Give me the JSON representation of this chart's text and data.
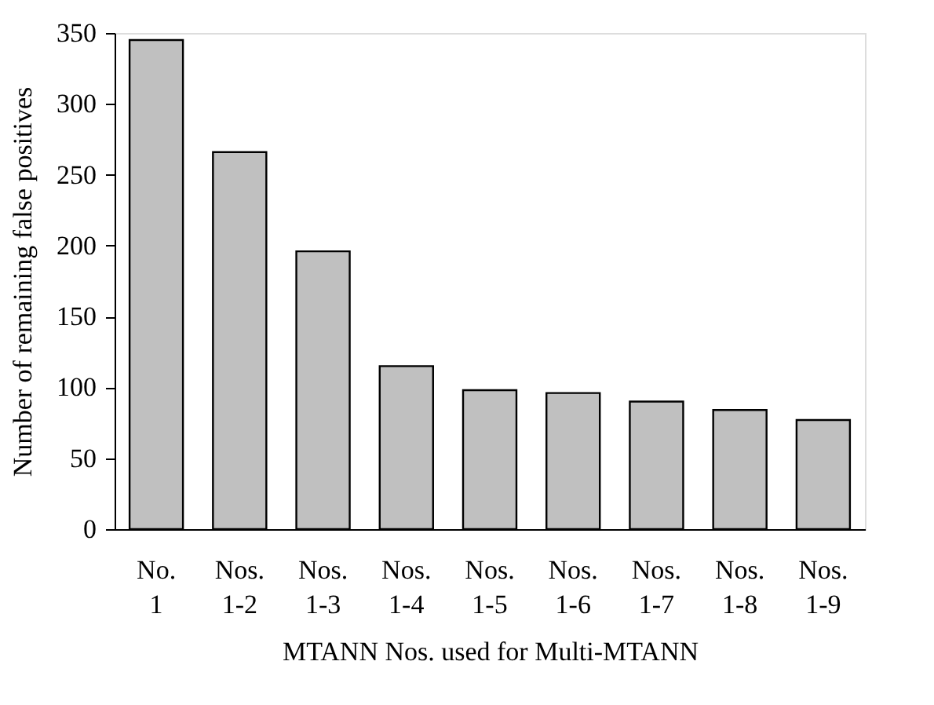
{
  "chart_data": {
    "type": "bar",
    "xlabel": "MTANN Nos. used for Multi-MTANN",
    "ylabel": "Number of remaining false positives",
    "categories": [
      "No. 1",
      "Nos. 1-2",
      "Nos. 1-3",
      "Nos. 1-4",
      "Nos. 1-5",
      "Nos. 1-6",
      "Nos. 1-7",
      "Nos. 1-8",
      "Nos. 1-9"
    ],
    "values": [
      345,
      266,
      196,
      115,
      98,
      96,
      90,
      84,
      77
    ],
    "color": "#c0c0c0",
    "ylim": [
      0,
      350
    ],
    "yticks": [
      0,
      50,
      100,
      150,
      200,
      250,
      300,
      350
    ],
    "grid": false
  }
}
